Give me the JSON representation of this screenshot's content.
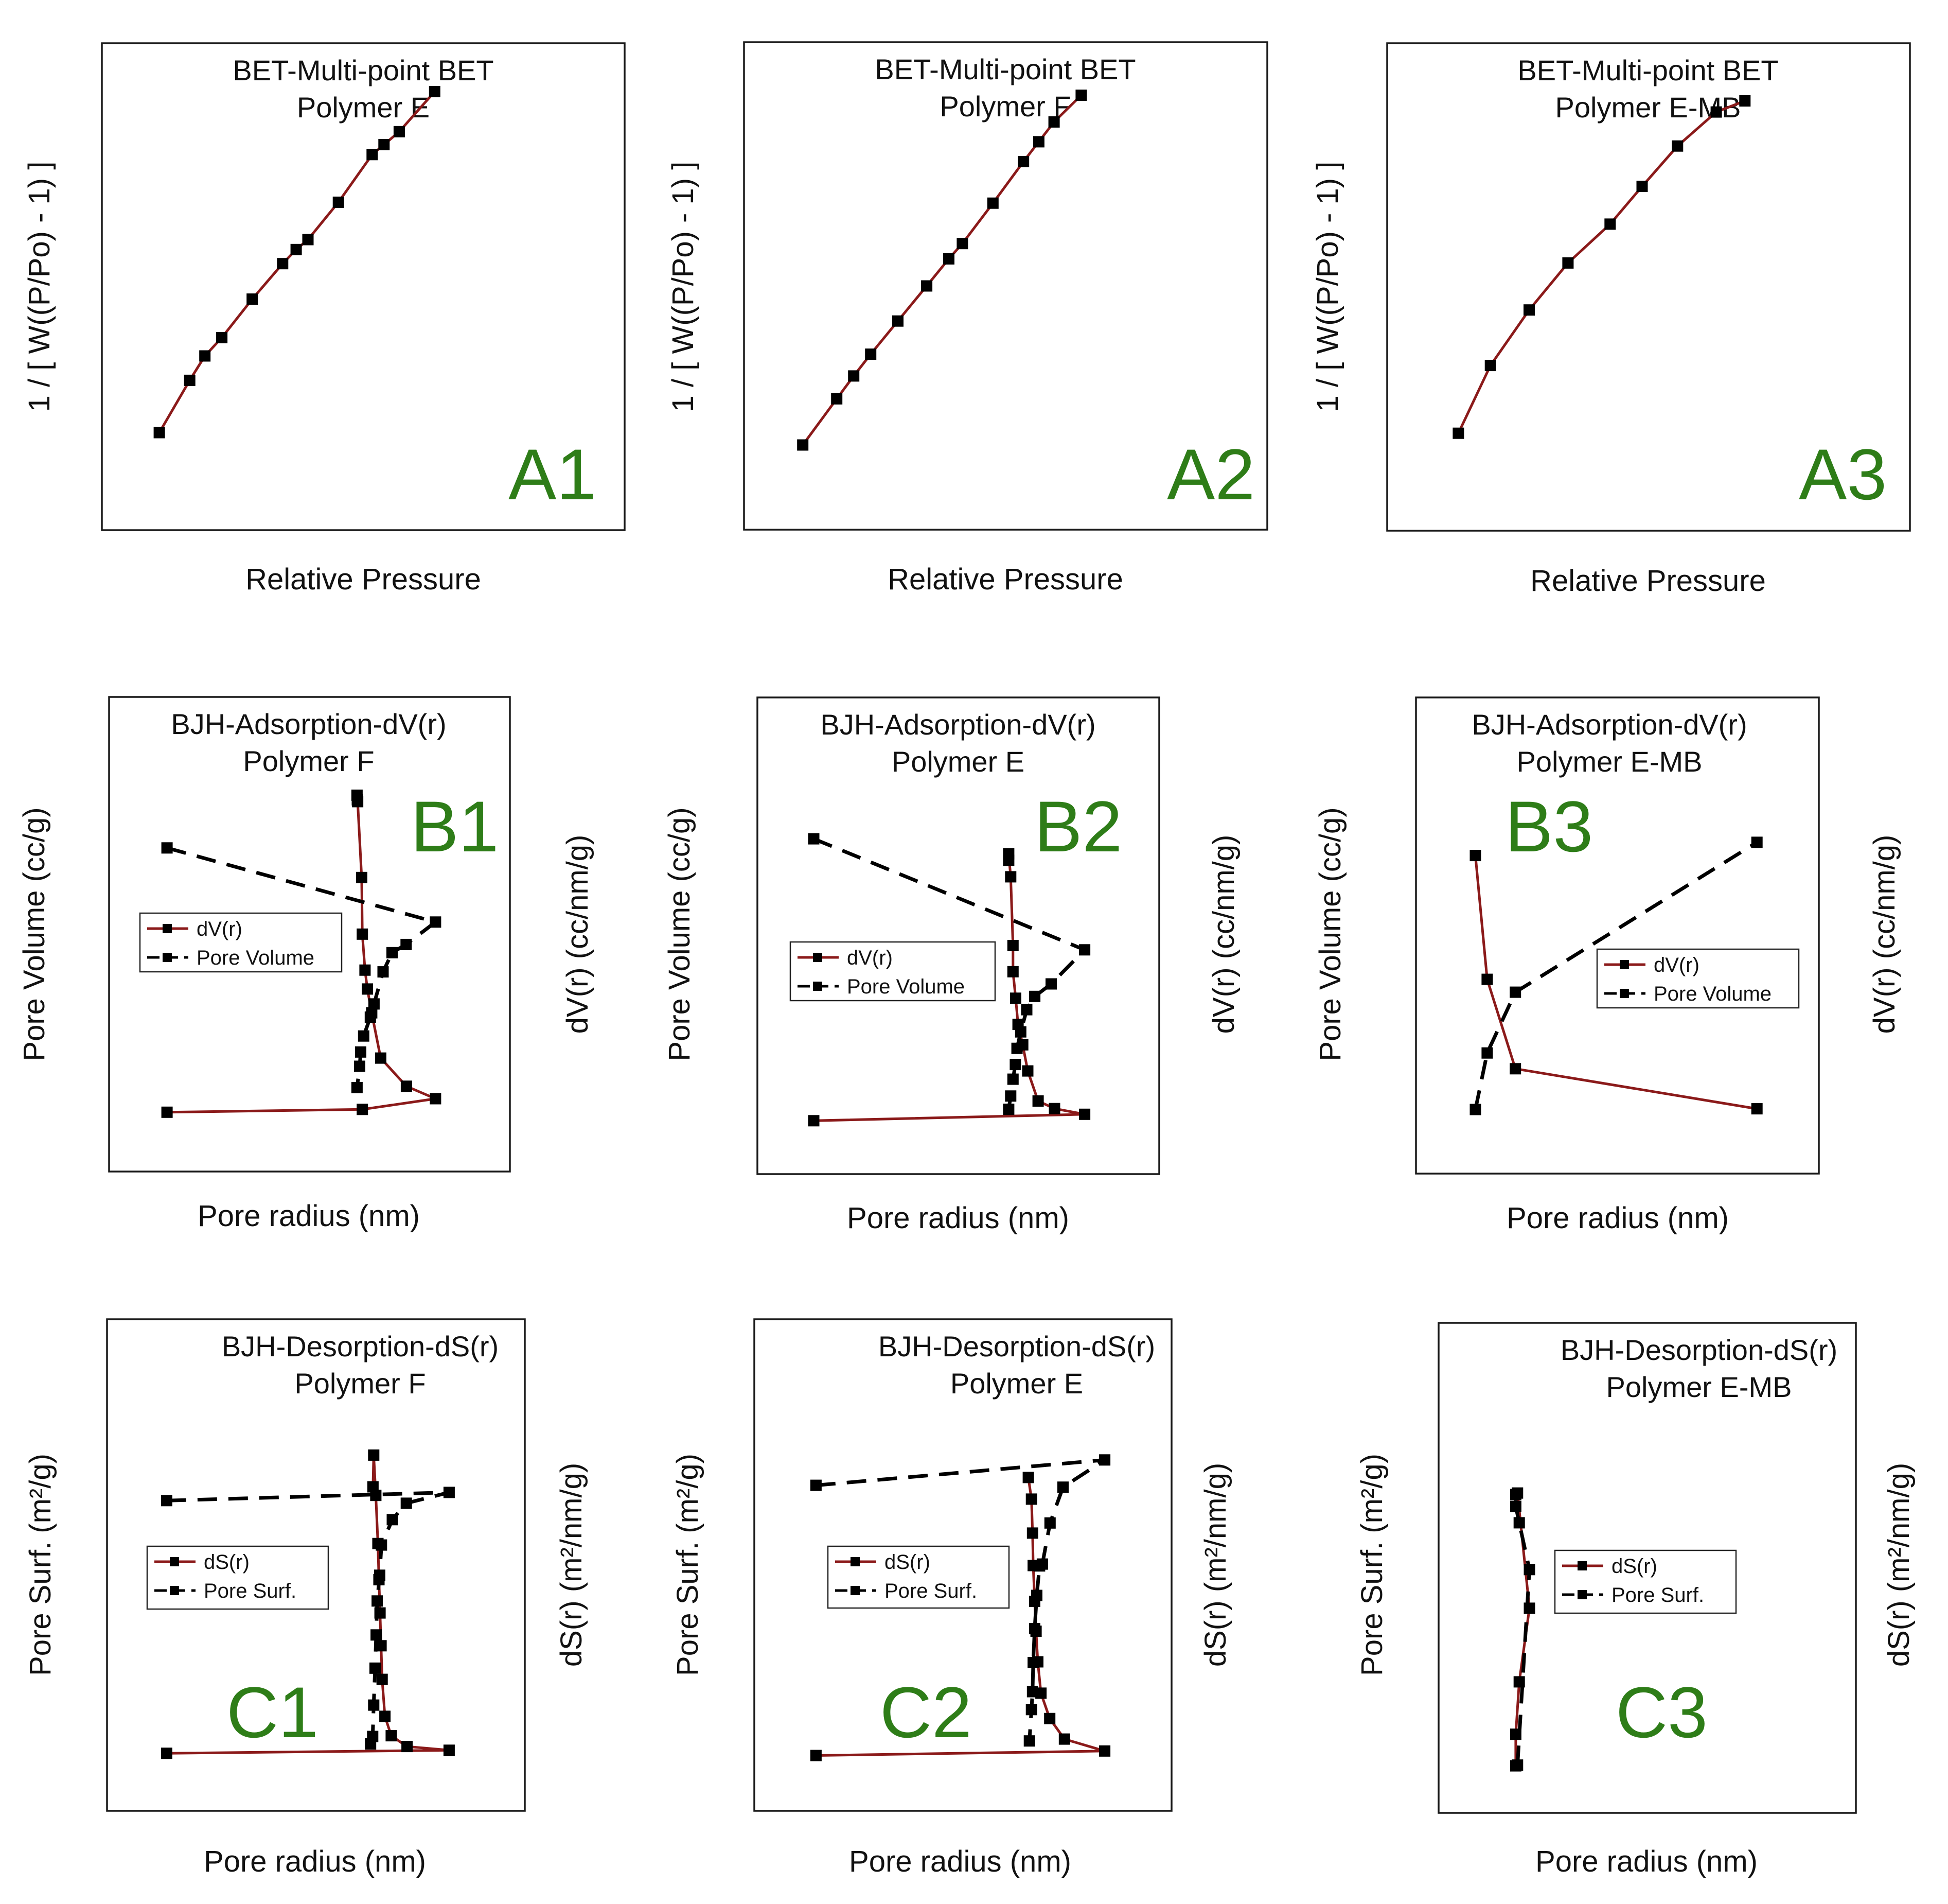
{
  "chart_data": [
    {
      "id": "A1",
      "type": "line",
      "label": "A1",
      "title": [
        "BET-Multi-point BET",
        "Polymer E"
      ],
      "xlabel": "Relative Pressure",
      "ylabel": "1 / [ W((P/Po) - 1) ]",
      "y2label": "",
      "xlim": [
        0.05,
        0.3
      ],
      "ylim": [
        0,
        100
      ],
      "legend": null,
      "series": [
        {
          "name": "BET",
          "style": "solid",
          "color": "#8b1a1a",
          "x": [
            0.059,
            0.077,
            0.086,
            0.096,
            0.114,
            0.132,
            0.14,
            0.147,
            0.165,
            0.185,
            0.192,
            0.201,
            0.222
          ],
          "y": [
            10.6,
            24.3,
            30.7,
            35.5,
            45.6,
            54.9,
            58.6,
            61.2,
            71.0,
            83.5,
            86.1,
            89.5,
            100.0
          ]
        }
      ]
    },
    {
      "id": "A2",
      "type": "line",
      "label": "A2",
      "title": [
        "BET-Multi-point BET",
        "Polymer F"
      ],
      "xlabel": "Relative Pressure",
      "ylabel": "1 / [ W((P/Po) - 1) ]",
      "y2label": "",
      "xlim": [
        0.05,
        0.3
      ],
      "ylim": [
        0,
        100
      ],
      "legend": null,
      "series": [
        {
          "name": "BET",
          "style": "solid",
          "color": "#8b1a1a",
          "x": [
            0.064,
            0.084,
            0.094,
            0.104,
            0.12,
            0.137,
            0.15,
            0.158,
            0.176,
            0.194,
            0.203,
            0.212,
            0.228
          ],
          "y": [
            8.3,
            20.4,
            26.4,
            32.1,
            40.8,
            50.0,
            57.1,
            61.1,
            71.7,
            82.6,
            87.8,
            93.0,
            100.0
          ]
        }
      ]
    },
    {
      "id": "A3",
      "type": "line",
      "label": "A3",
      "title": [
        "BET-Multi-point BET",
        "Polymer E-MB"
      ],
      "xlabel": "Relative Pressure",
      "ylabel": "1 / [ W((P/Po) - 1) ]",
      "y2label": "",
      "xlim": [
        0.05,
        0.3
      ],
      "ylim": [
        0,
        100
      ],
      "legend": null,
      "series": [
        {
          "name": "BET",
          "style": "solid",
          "color": "#8b1a1a",
          "x": [
            0.066,
            0.085,
            0.108,
            0.131,
            0.156,
            0.175,
            0.196,
            0.219,
            0.236
          ],
          "y": [
            10.2,
            28.5,
            43.5,
            56.2,
            66.7,
            76.9,
            87.8,
            97.0,
            100.0
          ]
        }
      ]
    },
    {
      "id": "B1",
      "type": "line",
      "label": "B1",
      "title": [
        "BJH-Adsorption-dV(r)",
        "Polymer F"
      ],
      "xlabel": "Pore radius (nm)",
      "ylabel": "Pore Volume (cc/g)",
      "y2label": "dV(r) (cc/nm/g)",
      "xlim": [
        0,
        100
      ],
      "ylim": [
        0,
        100
      ],
      "legend": {
        "labels": [
          "dV(r)",
          "Pore Volume"
        ]
      },
      "series": [
        {
          "name": "dV(r)",
          "style": "solid",
          "color": "#8b1a1a",
          "x": [
            8.1,
            66.6,
            88.5,
            79.8,
            72.1,
            69.4,
            68.1,
            67.4,
            66.6,
            66.4,
            65.2,
            65.0,
            65.1
          ],
          "y": [
            7.4,
            8.2,
            11.2,
            14.7,
            22.6,
            35.3,
            42.0,
            47.3,
            57.4,
            73.3,
            94.6,
            96.4,
            95.1
          ]
        }
      ]
    },
    {
      "id": "B1",
      "type": "line",
      "label": "B1",
      "title": [
        "BJH-Adsorption-dV(r)",
        "Polymer F"
      ],
      "xlabel": "Pore radius (nm)",
      "ylabel": "Pore Volume (cc/g)",
      "y2label": "dV(r) (cc/nm/g)",
      "xlim": [
        0,
        100
      ],
      "ylim": [
        0,
        100
      ],
      "legend": {
        "labels": [
          "dV(r)",
          "Pore Volume"
        ]
      },
      "series": [
        {
          "name": "Pore Volume",
          "style": "dashed",
          "color": "#000000",
          "x": [
            8.1,
            88.5,
            79.7,
            75.5,
            72.8,
            70.1,
            69.0,
            67.0,
            66.1,
            65.8,
            65.0
          ],
          "y": [
            81.6,
            60.8,
            54.5,
            52.2,
            46.8,
            37.8,
            34.1,
            28.8,
            24.3,
            20.3,
            14.3
          ]
        }
      ]
    },
    {
      "id": "B2",
      "type": "line",
      "label": "B2",
      "title": [
        "BJH-Adsorption-dV(r)",
        "Polymer E"
      ],
      "xlabel": "Pore radius (nm)",
      "ylabel": "Pore Volume (cc/g)",
      "y2label": "dV(r) (cc/nm/g)",
      "xlim": [
        0,
        100
      ],
      "ylim": [
        0,
        100
      ],
      "legend": {
        "labels": [
          "dV(r)",
          "Pore Volume"
        ]
      },
      "series": [
        {
          "name": "dV(r)",
          "style": "solid",
          "color": "#8b1a1a",
          "x": [
            7.6,
            88.5,
            79.5,
            74.6,
            71.5,
            70.0,
            68.6,
            67.9,
            67.1,
            67.1,
            66.4,
            65.8,
            65.8
          ],
          "y": [
            5.7,
            7.5,
            9.1,
            11.2,
            19.6,
            26.9,
            32.6,
            39.9,
            47.3,
            54.6,
            73.8,
            80.2,
            78.4
          ]
        }
      ]
    },
    {
      "id": "B2",
      "type": "line",
      "label": "B2",
      "title": [
        "BJH-Adsorption-dV(r)",
        "Polymer E"
      ],
      "xlabel": "Pore radius (nm)",
      "ylabel": "Pore Volume (cc/g)",
      "y2label": "dV(r) (cc/nm/g)",
      "xlim": [
        0,
        100
      ],
      "ylim": [
        0,
        100
      ],
      "legend": {
        "labels": [
          "dV(r)",
          "Pore Volume"
        ]
      },
      "series": [
        {
          "name": "Pore Volume",
          "style": "dashed",
          "color": "#000000",
          "x": [
            7.6,
            88.5,
            78.5,
            73.6,
            71.2,
            69.4,
            68.3,
            67.8,
            67.1,
            66.4,
            65.8
          ],
          "y": [
            84.4,
            53.4,
            43.9,
            40.4,
            36.7,
            30.5,
            25.9,
            21.4,
            17.3,
            12.6,
            8.9
          ]
        }
      ]
    },
    {
      "id": "B3",
      "type": "line",
      "label": "B3",
      "title": [
        "BJH-Adsorption-dV(r)",
        "Polymer E-MB"
      ],
      "xlabel": "Pore radius (nm)",
      "ylabel": "Pore Volume (cc/g)",
      "y2label": "dV(r) (cc/nm/g)",
      "xlim": [
        0,
        100
      ],
      "ylim": [
        0,
        100
      ],
      "legend": {
        "labels": [
          "dV(r)",
          "Pore Volume"
        ]
      },
      "series": [
        {
          "name": "dV(r)",
          "style": "solid",
          "color": "#8b1a1a",
          "x": [
            8.5,
            12.0,
            20.4,
            92.3
          ],
          "y": [
            79.7,
            45.1,
            20.1,
            8.9
          ]
        }
      ]
    },
    {
      "id": "B3",
      "type": "line",
      "label": "B3",
      "title": [
        "BJH-Adsorption-dV(r)",
        "Polymer E-MB"
      ],
      "xlabel": "Pore radius (nm)",
      "ylabel": "Pore Volume (cc/g)",
      "y2label": "dV(r) (cc/nm/g)",
      "xlim": [
        0,
        100
      ],
      "ylim": [
        0,
        100
      ],
      "legend": {
        "labels": [
          "dV(r)",
          "Pore Volume"
        ]
      },
      "series": [
        {
          "name": "Pore Volume",
          "style": "dashed",
          "color": "#000000",
          "x": [
            8.5,
            12.0,
            20.4,
            92.3
          ],
          "y": [
            8.7,
            24.5,
            41.5,
            83.4
          ]
        }
      ]
    },
    {
      "id": "C1",
      "type": "line",
      "label": "C1",
      "title": [
        "BJH-Desorption-dS(r)",
        "Polymer F"
      ],
      "xlabel": "Pore radius (nm)",
      "ylabel": "Pore Surf. (m²/g)",
      "y2label": "dS(r) (m²/nm/g)",
      "xlim": [
        0,
        100
      ],
      "ylim": [
        0,
        100
      ],
      "legend": {
        "labels": [
          "dS(r)",
          "Pore Surf."
        ]
      },
      "series": [
        {
          "name": "dS(r)",
          "style": "solid",
          "color": "#8b1a1a",
          "x": [
            8.2,
            88.7,
            76.7,
            72.2,
            70.4,
            69.6,
            69.3,
            69.0,
            68.7,
            68.4,
            67.8,
            67.2,
            67.0
          ],
          "y": [
            6.6,
            7.4,
            8.4,
            11.3,
            16.5,
            26.4,
            35.4,
            44.2,
            53.1,
            62.8,
            75.7,
            86.5,
            78.0
          ]
        }
      ]
    },
    {
      "id": "C1",
      "type": "line",
      "label": "C1",
      "title": [
        "BJH-Desorption-dS(r)",
        "Polymer F"
      ],
      "xlabel": "Pore radius (nm)",
      "ylabel": "Pore Surf. (m²/g)",
      "y2label": "dS(r) (m²/nm/g)",
      "xlim": [
        0,
        100
      ],
      "ylim": [
        0,
        100
      ],
      "legend": {
        "labels": [
          "dS(r)",
          "Pore Surf."
        ]
      },
      "series": [
        {
          "name": "Pore Surf.",
          "style": "dashed",
          "color": "#000000",
          "x": [
            8.2,
            88.7,
            76.5,
            72.5,
            69.4,
            68.9,
            68.2,
            67.9,
            67.6,
            67.2,
            66.9,
            66.3
          ],
          "y": [
            74.3,
            76.5,
            73.6,
            69.2,
            62.4,
            54.3,
            47.4,
            38.3,
            29.4,
            19.5,
            11.1,
            9.1
          ]
        }
      ]
    },
    {
      "id": "C2",
      "type": "line",
      "label": "C2",
      "title": [
        "BJH-Desorption-dS(r)",
        "Polymer E"
      ],
      "xlabel": "Pore radius (nm)",
      "ylabel": "Pore Surf. (m²/g)",
      "y2label": "dS(r) (m²/nm/g)",
      "xlim": [
        0,
        100
      ],
      "ylim": [
        0,
        100
      ],
      "legend": {
        "labels": [
          "dS(r)",
          "Pore Surf."
        ]
      },
      "series": [
        {
          "name": "dS(r)",
          "style": "solid",
          "color": "#8b1a1a",
          "x": [
            8.8,
            91.2,
            79.7,
            75.5,
            73.0,
            72.1,
            71.6,
            71.2,
            70.8,
            70.6,
            70.3,
            69.4
          ],
          "y": [
            6.0,
            7.2,
            10.4,
            15.9,
            22.7,
            31.1,
            39.3,
            47.3,
            56.9,
            65.6,
            74.7,
            80.5
          ]
        }
      ]
    },
    {
      "id": "C2",
      "type": "line",
      "label": "C2",
      "title": [
        "BJH-Desorption-dS(r)",
        "Polymer E"
      ],
      "xlabel": "Pore radius (nm)",
      "ylabel": "Pore Surf. (m²/g)",
      "y2label": "dS(r) (m²/nm/g)",
      "xlim": [
        0,
        100
      ],
      "ylim": [
        0,
        100
      ],
      "legend": {
        "labels": [
          "dS(r)",
          "Pore Surf."
        ]
      },
      "series": [
        {
          "name": "Pore Surf.",
          "style": "dashed",
          "color": "#000000",
          "x": [
            8.8,
            91.2,
            79.3,
            75.6,
            73.4,
            72.6,
            71.8,
            71.2,
            70.8,
            70.6,
            70.3,
            69.7
          ],
          "y": [
            78.4,
            85.2,
            77.9,
            68.3,
            57.3,
            56.8,
            48.9,
            40.0,
            30.9,
            23.1,
            18.3,
            9.9
          ]
        }
      ]
    },
    {
      "id": "C3",
      "type": "line",
      "label": "C3",
      "title": [
        "BJH-Desorption-dS(r)",
        "Polymer E-MB"
      ],
      "xlabel": "Pore radius (nm)",
      "ylabel": "Pore Surf. (m²/g)",
      "y2label": "dS(r) (m²/nm/g)",
      "xlim": [
        0,
        100
      ],
      "ylim": [
        0,
        100
      ],
      "legend": {
        "labels": [
          "dS(r)",
          "Pore Surf."
        ]
      },
      "series": [
        {
          "name": "dS(r)",
          "style": "solid",
          "color": "#8b1a1a",
          "x": [
            13.7,
            17.1,
            14.2,
            13.2,
            13.2
          ],
          "y": [
            77.2,
            46.2,
            26.4,
            12.3,
            3.8
          ]
        }
      ]
    },
    {
      "id": "C3",
      "type": "line",
      "label": "C3",
      "title": [
        "BJH-Desorption-dS(r)",
        "Polymer E-MB"
      ],
      "xlabel": "Pore radius (nm)",
      "ylabel": "Pore Surf. (m²/g)",
      "y2label": "dS(r) (m²/nm/g)",
      "xlim": [
        0,
        100
      ],
      "ylim": [
        0,
        100
      ],
      "legend": {
        "labels": [
          "dS(r)",
          "Pore Surf."
        ]
      },
      "series": [
        {
          "name": "Pore Surf.",
          "style": "dashed",
          "color": "#000000",
          "x": [
            13.7,
            17.1,
            14.2,
            13.2,
            13.2
          ],
          "y": [
            4.0,
            56.6,
            69.2,
            73.6,
            76.8
          ]
        }
      ]
    }
  ]
}
